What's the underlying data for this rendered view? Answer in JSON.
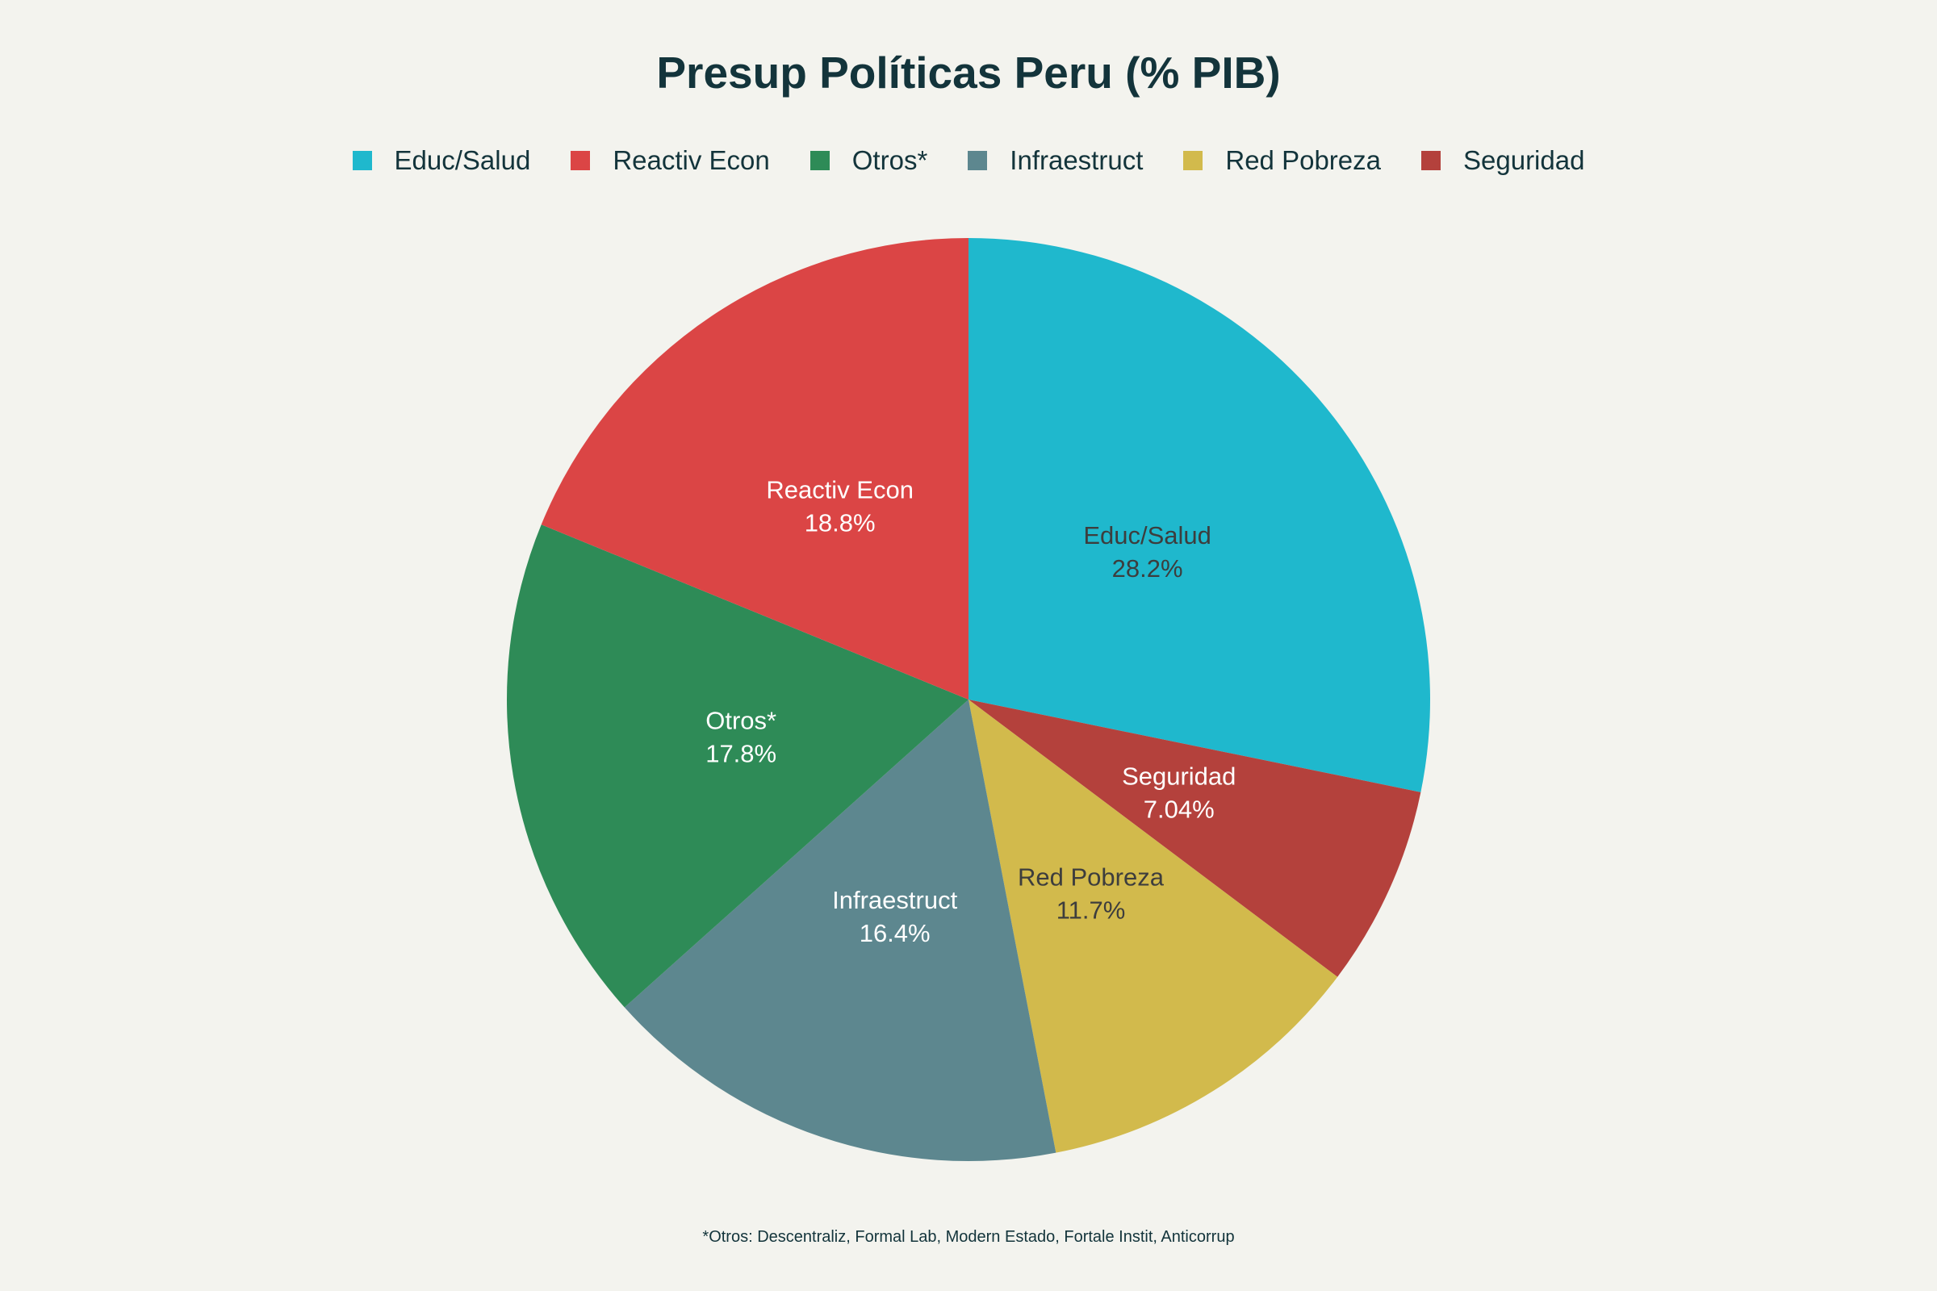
{
  "chart_data": {
    "type": "pie",
    "title": "Presup Políticas Peru (% PIB)",
    "legend_position": "top",
    "slices": [
      {
        "label": "Educ/Salud",
        "value": 28.2,
        "display": "28.2%",
        "color": "#1fb8cd",
        "text_color": "#3d3d3d"
      },
      {
        "label": "Seguridad",
        "value": 7.04,
        "display": "7.04%",
        "color": "#b4413c",
        "text_color": "#ffffff"
      },
      {
        "label": "Red Pobreza",
        "value": 11.7,
        "display": "11.7%",
        "color": "#d2ba4c",
        "text_color": "#3d3d3d"
      },
      {
        "label": "Infraestruct",
        "value": 16.4,
        "display": "16.4%",
        "color": "#5d878f",
        "text_color": "#ffffff"
      },
      {
        "label": "Otros*",
        "value": 17.8,
        "display": "17.8%",
        "color": "#2e8b57",
        "text_color": "#ffffff"
      },
      {
        "label": "Reactiv Econ",
        "value": 18.8,
        "display": "18.8%",
        "color": "#db4545",
        "text_color": "#ffffff"
      }
    ],
    "legend": [
      {
        "label": "Educ/Salud",
        "color": "#1fb8cd"
      },
      {
        "label": "Reactiv Econ",
        "color": "#db4545"
      },
      {
        "label": "Otros*",
        "color": "#2e8b57"
      },
      {
        "label": "Infraestruct",
        "color": "#5d878f"
      },
      {
        "label": "Red Pobreza",
        "color": "#d2ba4c"
      },
      {
        "label": "Seguridad",
        "color": "#b4413c"
      }
    ],
    "footnote": "*Otros: Descentraliz, Formal Lab, Modern Estado, Fortale Instit, Anticorrup"
  }
}
